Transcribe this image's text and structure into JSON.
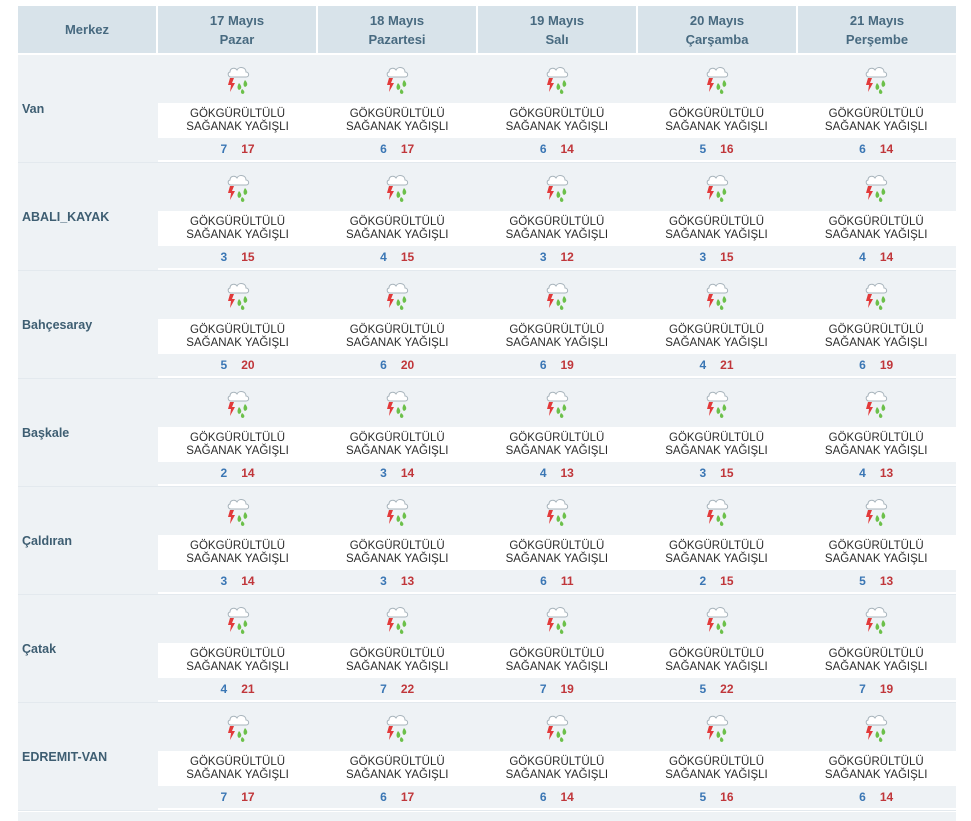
{
  "header": {
    "center_label": "Merkez",
    "days": [
      {
        "date": "17 Mayıs",
        "weekday": "Pazar"
      },
      {
        "date": "18 Mayıs",
        "weekday": "Pazartesi"
      },
      {
        "date": "19 Mayıs",
        "weekday": "Salı"
      },
      {
        "date": "20 Mayıs",
        "weekday": "Çarşamba"
      },
      {
        "date": "21 Mayıs",
        "weekday": "Perşembe"
      }
    ]
  },
  "weather_label_line1": "GÖKGÜRÜLTÜLÜ",
  "weather_label_line2": "SAĞANAK YAĞIŞLI",
  "icon": "thunderstorm-rain-icon",
  "colors": {
    "min_temp": "#3a76b4",
    "max_temp": "#c0363a",
    "header_bg": "#d8e3ea",
    "band_bg": "#eef2f5"
  },
  "rows": [
    {
      "name": "Van",
      "days": [
        {
          "min": "7",
          "max": "17"
        },
        {
          "min": "6",
          "max": "17"
        },
        {
          "min": "6",
          "max": "14"
        },
        {
          "min": "5",
          "max": "16"
        },
        {
          "min": "6",
          "max": "14"
        }
      ]
    },
    {
      "name": "ABALI_KAYAK",
      "days": [
        {
          "min": "3",
          "max": "15"
        },
        {
          "min": "4",
          "max": "15"
        },
        {
          "min": "3",
          "max": "12"
        },
        {
          "min": "3",
          "max": "15"
        },
        {
          "min": "4",
          "max": "14"
        }
      ]
    },
    {
      "name": "Bahçesaray",
      "days": [
        {
          "min": "5",
          "max": "20"
        },
        {
          "min": "6",
          "max": "20"
        },
        {
          "min": "6",
          "max": "19"
        },
        {
          "min": "4",
          "max": "21"
        },
        {
          "min": "6",
          "max": "19"
        }
      ]
    },
    {
      "name": "Başkale",
      "days": [
        {
          "min": "2",
          "max": "14"
        },
        {
          "min": "3",
          "max": "14"
        },
        {
          "min": "4",
          "max": "13"
        },
        {
          "min": "3",
          "max": "15"
        },
        {
          "min": "4",
          "max": "13"
        }
      ]
    },
    {
      "name": "Çaldıran",
      "days": [
        {
          "min": "3",
          "max": "14"
        },
        {
          "min": "3",
          "max": "13"
        },
        {
          "min": "6",
          "max": "11"
        },
        {
          "min": "2",
          "max": "15"
        },
        {
          "min": "5",
          "max": "13"
        }
      ]
    },
    {
      "name": "Çatak",
      "days": [
        {
          "min": "4",
          "max": "21"
        },
        {
          "min": "7",
          "max": "22"
        },
        {
          "min": "7",
          "max": "19"
        },
        {
          "min": "5",
          "max": "22"
        },
        {
          "min": "7",
          "max": "19"
        }
      ]
    },
    {
      "name": "EDREMIT-VAN",
      "days": [
        {
          "min": "7",
          "max": "17"
        },
        {
          "min": "6",
          "max": "17"
        },
        {
          "min": "6",
          "max": "14"
        },
        {
          "min": "5",
          "max": "16"
        },
        {
          "min": "6",
          "max": "14"
        }
      ]
    }
  ]
}
